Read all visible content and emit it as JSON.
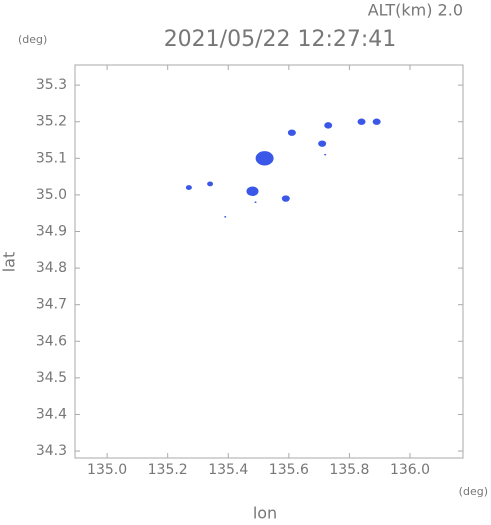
{
  "chart_data": {
    "type": "scatter",
    "title": "2021/05/22 12:27:41",
    "subtitle": "ALT(km) 2.0",
    "x_unit": "(deg)",
    "y_unit": "(deg)",
    "x_label": "lon",
    "y_label": "lat",
    "xlim": [
      134.894,
      136.175
    ],
    "ylim": [
      34.281,
      35.355
    ],
    "xticks": [
      {
        "value": 135,
        "label": "135.0"
      },
      135.2,
      135.4,
      135.6,
      135.8,
      {
        "value": 136,
        "label": "136.0"
      }
    ],
    "yticks": [
      34.3,
      34.4,
      34.5,
      34.6,
      34.7,
      34.8,
      34.9,
      {
        "value": 35,
        "label": "35.0"
      },
      35.1,
      35.2,
      35.3
    ],
    "series": [
      {
        "color": "#3a57e8",
        "x": [
          135.27,
          135.34,
          135.48,
          135.52,
          135.59,
          135.61,
          135.71,
          135.73,
          135.84,
          135.89,
          135.39,
          135.49,
          135.72
        ],
        "values": [
          35.02,
          35.03,
          35.01,
          35.1,
          34.99,
          35.17,
          35.14,
          35.19,
          35.2,
          35.2,
          34.94,
          34.98,
          35.11
        ],
        "sizes": [
          3,
          3,
          6,
          9,
          4,
          4,
          4,
          4,
          4,
          4,
          1,
          1,
          1
        ]
      }
    ]
  }
}
